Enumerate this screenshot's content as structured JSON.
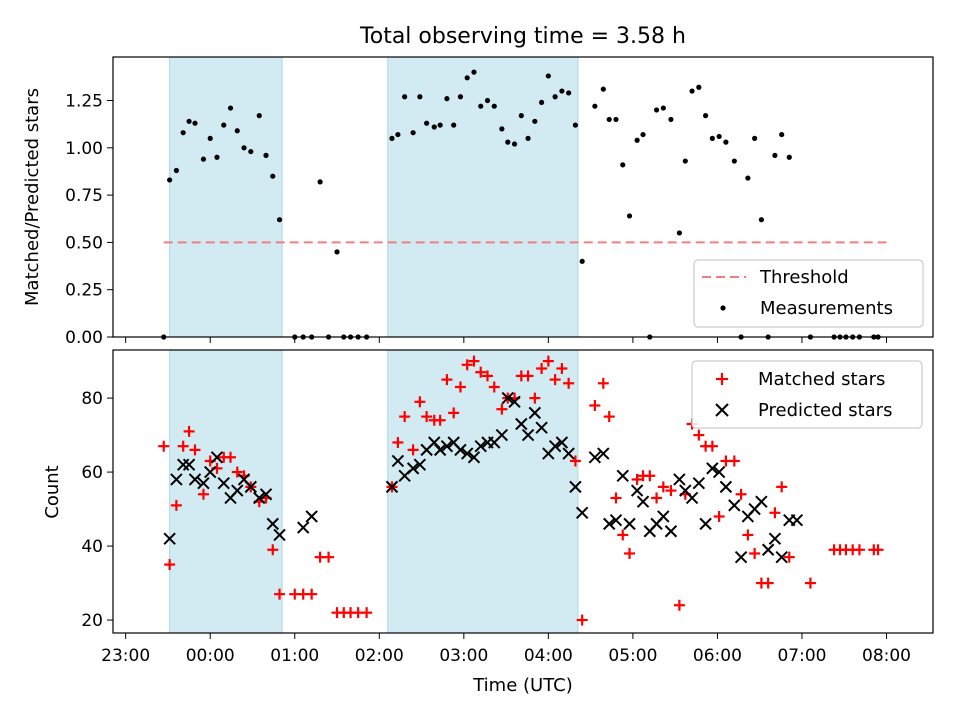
{
  "figure": {
    "title": "Total observing time = 3.58 h",
    "xlabel": "Time (UTC)",
    "x_tick_labels": [
      "23:00",
      "00:00",
      "01:00",
      "02:00",
      "03:00",
      "04:00",
      "05:00",
      "06:00",
      "07:00",
      "08:00"
    ]
  },
  "colors": {
    "shade": "#add8e6",
    "threshold": "#f08080",
    "matched": "#ff0000",
    "predicted": "#000000",
    "measurement": "#000000"
  },
  "chart_data": [
    {
      "type": "scatter",
      "panel": "top",
      "ylabel": "Matched/Predicted stars",
      "xlim": [
        -0.15,
        9.55
      ],
      "ylim": [
        0,
        1.48
      ],
      "y_ticks": [
        0.0,
        0.25,
        0.5,
        0.75,
        1.0,
        1.25
      ],
      "y_tick_labels": [
        "0.00",
        "0.25",
        "0.50",
        "0.75",
        "1.00",
        "1.25"
      ],
      "shaded_intervals": [
        [
          0.52,
          1.85
        ],
        [
          3.1,
          5.35
        ]
      ],
      "threshold": {
        "name": "Threshold",
        "value": 0.5,
        "x_range": [
          0.45,
          9.0
        ]
      },
      "legend": {
        "position": "lower-right",
        "entries": [
          "Threshold",
          "Measurements"
        ]
      },
      "series": [
        {
          "name": "Measurements",
          "x": [
            0.45,
            0.52,
            0.6,
            0.68,
            0.75,
            0.82,
            0.92,
            1.0,
            1.08,
            1.16,
            1.24,
            1.32,
            1.4,
            1.48,
            1.58,
            1.66,
            1.74,
            1.82,
            2.0,
            2.1,
            2.2,
            2.3,
            2.4,
            2.5,
            2.58,
            2.66,
            2.75,
            2.85,
            3.15,
            3.22,
            3.3,
            3.4,
            3.48,
            3.56,
            3.65,
            3.72,
            3.8,
            3.88,
            3.96,
            4.04,
            4.12,
            4.2,
            4.28,
            4.36,
            4.45,
            4.52,
            4.6,
            4.68,
            4.76,
            4.84,
            4.92,
            5.0,
            5.08,
            5.16,
            5.24,
            5.32,
            5.4,
            5.55,
            5.65,
            5.72,
            5.8,
            5.88,
            5.96,
            6.05,
            6.12,
            6.2,
            6.28,
            6.36,
            6.45,
            6.55,
            6.62,
            6.7,
            6.78,
            6.86,
            6.94,
            7.02,
            7.1,
            7.2,
            7.28,
            7.36,
            7.44,
            7.52,
            7.6,
            7.68,
            7.76,
            7.85,
            8.1,
            8.38,
            8.45,
            8.52,
            8.6,
            8.68,
            8.85,
            8.9
          ],
          "y": [
            0.0,
            0.83,
            0.88,
            1.08,
            1.14,
            1.13,
            0.94,
            1.05,
            0.95,
            1.12,
            1.21,
            1.09,
            1.0,
            0.98,
            1.17,
            0.96,
            0.85,
            0.62,
            0.0,
            0.0,
            0.0,
            0.82,
            0.0,
            0.45,
            0.0,
            0.0,
            0.0,
            0.0,
            1.05,
            1.07,
            1.27,
            1.08,
            1.27,
            1.13,
            1.11,
            1.12,
            1.26,
            1.12,
            1.27,
            1.37,
            1.4,
            1.22,
            1.25,
            1.22,
            1.1,
            1.03,
            1.02,
            1.17,
            1.05,
            1.14,
            1.24,
            1.38,
            1.27,
            1.3,
            1.29,
            1.12,
            0.4,
            1.22,
            1.31,
            1.15,
            1.15,
            0.91,
            0.64,
            1.04,
            1.07,
            0.0,
            1.2,
            1.21,
            1.15,
            0.55,
            0.93,
            1.3,
            1.32,
            1.17,
            1.05,
            1.06,
            1.03,
            0.93,
            0.0,
            0.84,
            1.05,
            0.62,
            0.0,
            0.96,
            1.07,
            0.95,
            0.0,
            0.0,
            0.0,
            0.0,
            0.0,
            0.0,
            0.0,
            0.0
          ]
        }
      ]
    },
    {
      "type": "scatter",
      "panel": "bottom",
      "ylabel": "Count",
      "xlim": [
        -0.15,
        9.55
      ],
      "ylim": [
        16.5,
        93
      ],
      "y_ticks": [
        20,
        40,
        60,
        80
      ],
      "y_tick_labels": [
        "20",
        "40",
        "60",
        "80"
      ],
      "shaded_intervals": [
        [
          0.52,
          1.85
        ],
        [
          3.1,
          5.35
        ]
      ],
      "legend": {
        "position": "top-right",
        "entries": [
          "Matched stars",
          "Predicted stars"
        ]
      },
      "series": [
        {
          "name": "Matched stars",
          "x": [
            0.45,
            0.52,
            0.6,
            0.68,
            0.75,
            0.82,
            0.92,
            1.0,
            1.08,
            1.16,
            1.24,
            1.32,
            1.4,
            1.48,
            1.58,
            1.66,
            1.74,
            1.82,
            2.0,
            2.1,
            2.2,
            2.3,
            2.4,
            2.5,
            2.58,
            2.66,
            2.75,
            2.85,
            3.15,
            3.22,
            3.3,
            3.4,
            3.48,
            3.56,
            3.65,
            3.72,
            3.8,
            3.88,
            3.96,
            4.04,
            4.12,
            4.2,
            4.28,
            4.36,
            4.45,
            4.52,
            4.6,
            4.68,
            4.76,
            4.84,
            4.92,
            5.0,
            5.08,
            5.16,
            5.24,
            5.32,
            5.4,
            5.55,
            5.65,
            5.72,
            5.8,
            5.88,
            5.96,
            6.05,
            6.12,
            6.2,
            6.28,
            6.36,
            6.45,
            6.55,
            6.62,
            6.7,
            6.78,
            6.86,
            6.94,
            7.02,
            7.1,
            7.2,
            7.28,
            7.36,
            7.44,
            7.52,
            7.6,
            7.68,
            7.76,
            7.85,
            8.1,
            8.38,
            8.45,
            8.52,
            8.6,
            8.68,
            8.85,
            8.9
          ],
          "y": [
            67,
            35,
            51,
            67,
            71,
            66,
            54,
            63,
            61,
            64,
            64,
            60,
            59,
            56,
            52,
            53,
            39,
            27,
            27,
            27,
            27,
            37,
            37,
            22,
            22,
            22,
            22,
            22,
            56,
            68,
            75,
            66,
            79,
            75,
            74,
            74,
            85,
            76,
            83,
            89,
            90,
            87,
            86,
            83,
            77,
            80,
            80,
            86,
            86,
            80,
            88,
            90,
            85,
            88,
            84,
            63,
            20,
            78,
            84,
            75,
            53,
            43,
            38,
            58,
            59,
            59,
            53,
            56,
            55,
            24,
            54,
            73,
            70,
            67,
            67,
            48,
            63,
            63,
            54,
            43,
            38,
            30,
            30,
            49,
            56,
            37,
            30,
            39,
            39,
            39,
            39,
            39,
            39,
            39
          ]
        },
        {
          "name": "Predicted stars",
          "x": [
            0.52,
            0.6,
            0.68,
            0.75,
            0.82,
            0.92,
            1.0,
            1.08,
            1.16,
            1.24,
            1.32,
            1.4,
            1.48,
            1.58,
            1.66,
            1.74,
            1.82,
            2.1,
            2.2,
            3.15,
            3.22,
            3.3,
            3.4,
            3.48,
            3.56,
            3.65,
            3.72,
            3.8,
            3.88,
            3.96,
            4.04,
            4.12,
            4.2,
            4.28,
            4.36,
            4.45,
            4.52,
            4.6,
            4.68,
            4.76,
            4.84,
            4.92,
            5.0,
            5.08,
            5.16,
            5.24,
            5.32,
            5.4,
            5.55,
            5.65,
            5.72,
            5.8,
            5.88,
            5.96,
            6.05,
            6.12,
            6.2,
            6.28,
            6.36,
            6.45,
            6.55,
            6.62,
            6.7,
            6.78,
            6.86,
            6.94,
            7.02,
            7.1,
            7.2,
            7.28,
            7.36,
            7.44,
            7.52,
            7.6,
            7.68,
            7.76,
            7.85,
            7.94
          ],
          "y": [
            42,
            58,
            62,
            62,
            58,
            57,
            60,
            64,
            57,
            53,
            55,
            58,
            56,
            53,
            54,
            46,
            43,
            45,
            48,
            56,
            63,
            59,
            61,
            62,
            66,
            68,
            66,
            67,
            68,
            66,
            65,
            64,
            67,
            68,
            68,
            70,
            80,
            79,
            73,
            70,
            76,
            72,
            65,
            67,
            68,
            65,
            56,
            49,
            64,
            65,
            46,
            47,
            59,
            46,
            55,
            52,
            44,
            46,
            48,
            44,
            58,
            55,
            53,
            57,
            46,
            61,
            60,
            56,
            51,
            37,
            48,
            50,
            52,
            39,
            42,
            37,
            47,
            47
          ]
        }
      ]
    }
  ]
}
